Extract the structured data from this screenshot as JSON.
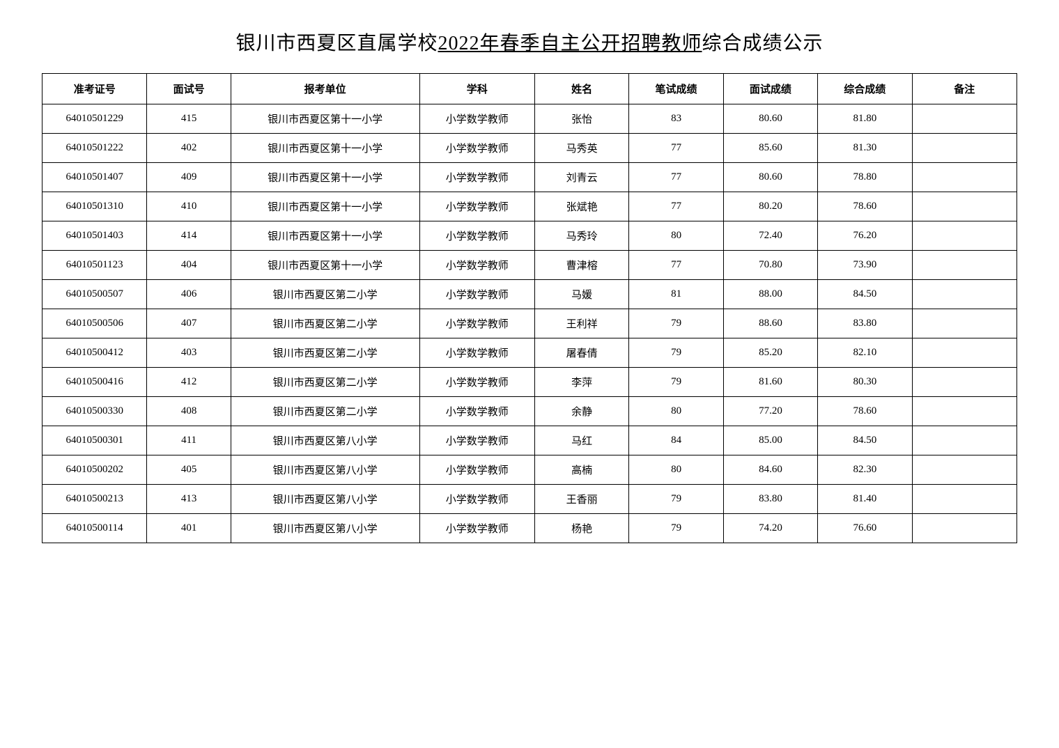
{
  "title": {
    "prefix": "银川市西夏区直属学校",
    "underlined": "2022年春季自主公开招聘教师",
    "suffix": "综合成绩公示"
  },
  "table": {
    "headers": {
      "exam_id": "准考证号",
      "interview_no": "面试号",
      "unit": "报考单位",
      "subject": "学科",
      "name": "姓名",
      "written_score": "笔试成绩",
      "interview_score": "面试成绩",
      "total_score": "综合成绩",
      "remark": "备注"
    },
    "rows": [
      {
        "exam_id": "64010501229",
        "interview_no": "415",
        "unit": "银川市西夏区第十一小学",
        "subject": "小学数学教师",
        "name": "张怡",
        "written_score": "83",
        "interview_score": "80.60",
        "total_score": "81.80",
        "remark": ""
      },
      {
        "exam_id": "64010501222",
        "interview_no": "402",
        "unit": "银川市西夏区第十一小学",
        "subject": "小学数学教师",
        "name": "马秀英",
        "written_score": "77",
        "interview_score": "85.60",
        "total_score": "81.30",
        "remark": ""
      },
      {
        "exam_id": "64010501407",
        "interview_no": "409",
        "unit": "银川市西夏区第十一小学",
        "subject": "小学数学教师",
        "name": "刘青云",
        "written_score": "77",
        "interview_score": "80.60",
        "total_score": "78.80",
        "remark": ""
      },
      {
        "exam_id": "64010501310",
        "interview_no": "410",
        "unit": "银川市西夏区第十一小学",
        "subject": "小学数学教师",
        "name": "张斌艳",
        "written_score": "77",
        "interview_score": "80.20",
        "total_score": "78.60",
        "remark": ""
      },
      {
        "exam_id": "64010501403",
        "interview_no": "414",
        "unit": "银川市西夏区第十一小学",
        "subject": "小学数学教师",
        "name": "马秀玲",
        "written_score": "80",
        "interview_score": "72.40",
        "total_score": "76.20",
        "remark": ""
      },
      {
        "exam_id": "64010501123",
        "interview_no": "404",
        "unit": "银川市西夏区第十一小学",
        "subject": "小学数学教师",
        "name": "曹津榕",
        "written_score": "77",
        "interview_score": "70.80",
        "total_score": "73.90",
        "remark": ""
      },
      {
        "exam_id": "64010500507",
        "interview_no": "406",
        "unit": "银川市西夏区第二小学",
        "subject": "小学数学教师",
        "name": "马媛",
        "written_score": "81",
        "interview_score": "88.00",
        "total_score": "84.50",
        "remark": ""
      },
      {
        "exam_id": "64010500506",
        "interview_no": "407",
        "unit": "银川市西夏区第二小学",
        "subject": "小学数学教师",
        "name": "王利祥",
        "written_score": "79",
        "interview_score": "88.60",
        "total_score": "83.80",
        "remark": ""
      },
      {
        "exam_id": "64010500412",
        "interview_no": "403",
        "unit": "银川市西夏区第二小学",
        "subject": "小学数学教师",
        "name": "屠春倩",
        "written_score": "79",
        "interview_score": "85.20",
        "total_score": "82.10",
        "remark": ""
      },
      {
        "exam_id": "64010500416",
        "interview_no": "412",
        "unit": "银川市西夏区第二小学",
        "subject": "小学数学教师",
        "name": "李萍",
        "written_score": "79",
        "interview_score": "81.60",
        "total_score": "80.30",
        "remark": ""
      },
      {
        "exam_id": "64010500330",
        "interview_no": "408",
        "unit": "银川市西夏区第二小学",
        "subject": "小学数学教师",
        "name": "余静",
        "written_score": "80",
        "interview_score": "77.20",
        "total_score": "78.60",
        "remark": ""
      },
      {
        "exam_id": "64010500301",
        "interview_no": "411",
        "unit": "银川市西夏区第八小学",
        "subject": "小学数学教师",
        "name": "马红",
        "written_score": "84",
        "interview_score": "85.00",
        "total_score": "84.50",
        "remark": ""
      },
      {
        "exam_id": "64010500202",
        "interview_no": "405",
        "unit": "银川市西夏区第八小学",
        "subject": "小学数学教师",
        "name": "高楠",
        "written_score": "80",
        "interview_score": "84.60",
        "total_score": "82.30",
        "remark": ""
      },
      {
        "exam_id": "64010500213",
        "interview_no": "413",
        "unit": "银川市西夏区第八小学",
        "subject": "小学数学教师",
        "name": "王香丽",
        "written_score": "79",
        "interview_score": "83.80",
        "total_score": "81.40",
        "remark": ""
      },
      {
        "exam_id": "64010500114",
        "interview_no": "401",
        "unit": "银川市西夏区第八小学",
        "subject": "小学数学教师",
        "name": "杨艳",
        "written_score": "79",
        "interview_score": "74.20",
        "total_score": "76.60",
        "remark": ""
      }
    ]
  },
  "styling": {
    "background_color": "#ffffff",
    "border_color": "#000000",
    "title_fontsize": 28,
    "header_fontsize": 15,
    "cell_fontsize": 15,
    "font_family": "SimSun"
  }
}
